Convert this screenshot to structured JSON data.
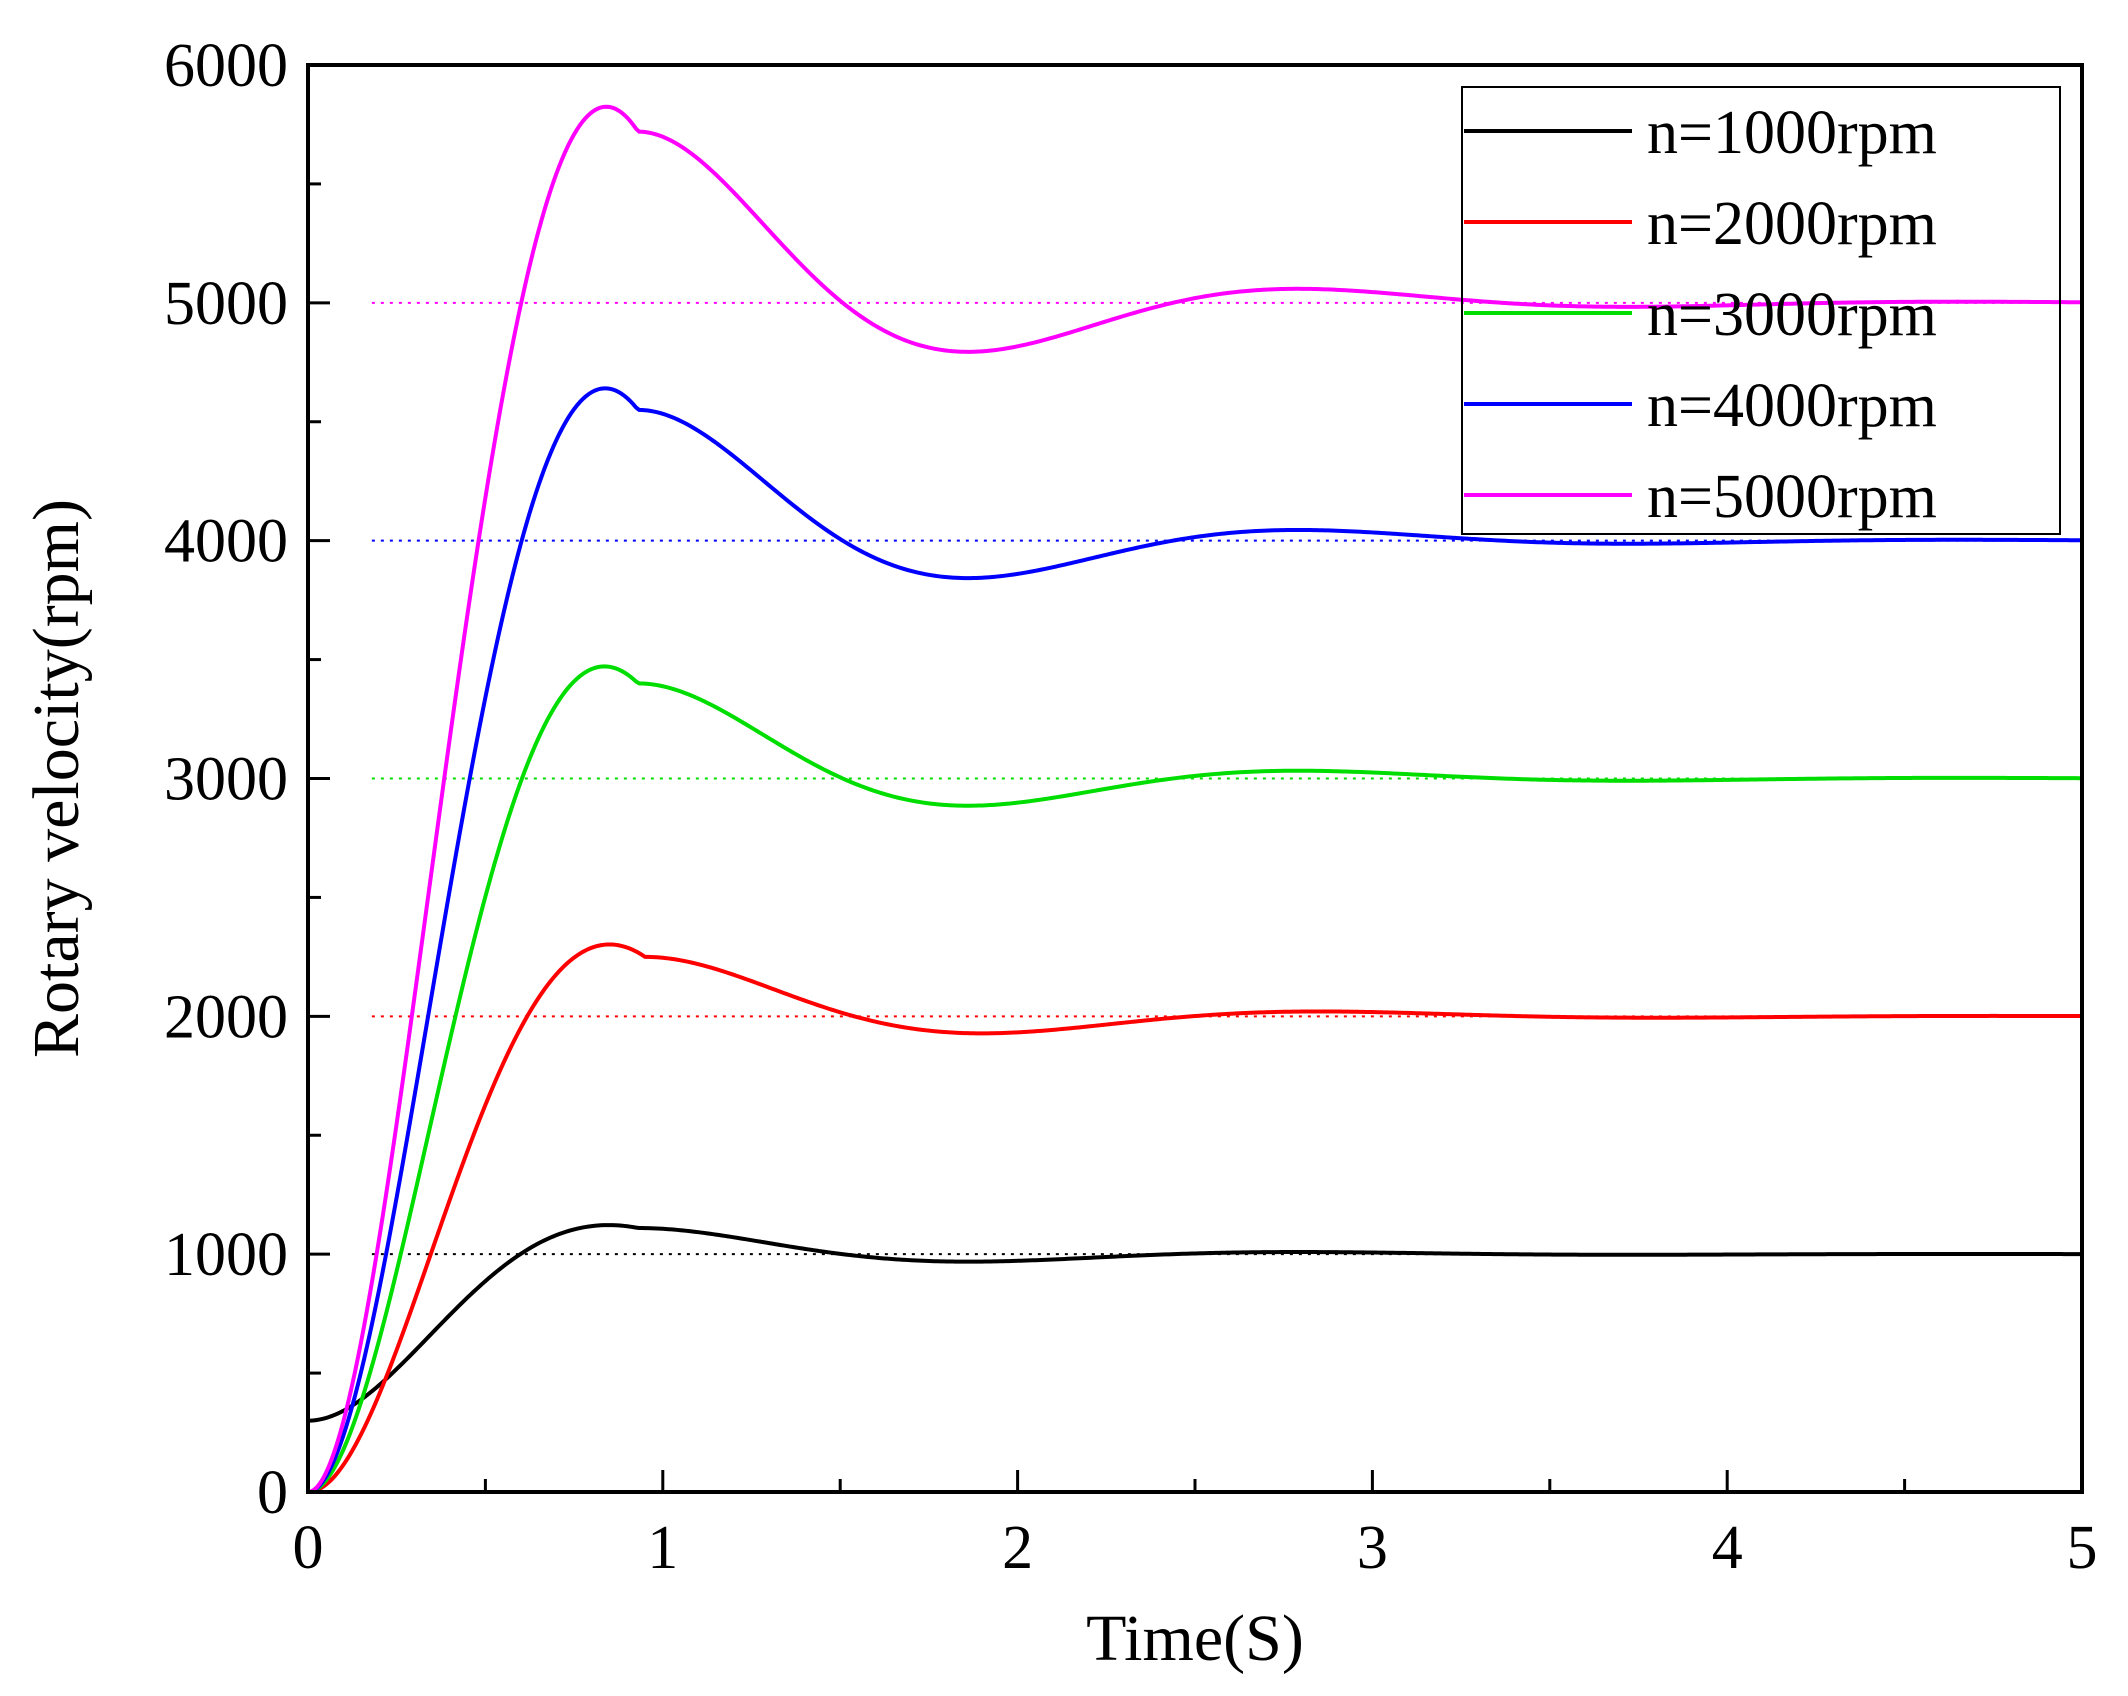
{
  "chart_data": {
    "type": "line",
    "title": "",
    "xlabel": "Time(S)",
    "ylabel": "Rotary velocity(rpm)",
    "xlim": [
      0,
      5
    ],
    "ylim": [
      0,
      6000
    ],
    "x_ticks": [
      "0",
      "1",
      "2",
      "3",
      "4",
      "5"
    ],
    "y_ticks": [
      "0",
      "1000",
      "2000",
      "3000",
      "4000",
      "5000",
      "6000"
    ],
    "legend_position": "top-right",
    "series": [
      {
        "name": "n=1000rpm",
        "color": "#000000",
        "setpoint": 1000,
        "start": 300,
        "peak": 1110,
        "peak_time": 0.93
      },
      {
        "name": "n=2000rpm",
        "color": "#ff0000",
        "setpoint": 2000,
        "start": 0,
        "peak": 2250,
        "peak_time": 0.95
      },
      {
        "name": "n=3000rpm",
        "color": "#00dd00",
        "setpoint": 3000,
        "start": 0,
        "peak": 3400,
        "peak_time": 0.93
      },
      {
        "name": "n=4000rpm",
        "color": "#0000ff",
        "setpoint": 4000,
        "start": 0,
        "peak": 4550,
        "peak_time": 0.93
      },
      {
        "name": "n=5000rpm",
        "color": "#ff00ff",
        "setpoint": 5000,
        "start": 0,
        "peak": 5720,
        "peak_time": 0.93
      }
    ],
    "reference_lines": [
      {
        "value": 1000,
        "color": "#000000",
        "style": "dotted"
      },
      {
        "value": 2000,
        "color": "#ff0000",
        "style": "dotted"
      },
      {
        "value": 3000,
        "color": "#00dd00",
        "style": "dotted"
      },
      {
        "value": 4000,
        "color": "#0000ff",
        "style": "dotted"
      },
      {
        "value": 5000,
        "color": "#ff00ff",
        "style": "dotted"
      }
    ]
  }
}
